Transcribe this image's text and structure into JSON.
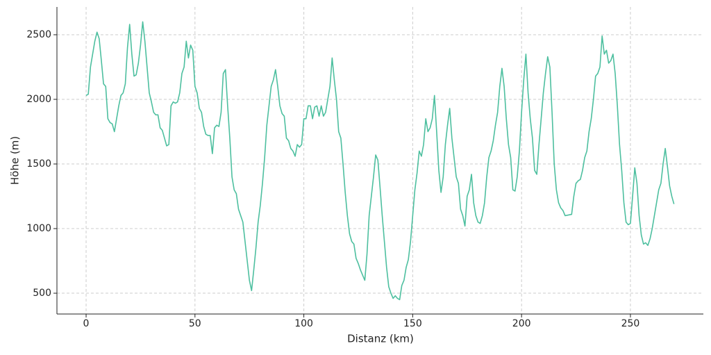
{
  "chart_data": {
    "type": "line",
    "xlabel": "Distanz (km)",
    "ylabel": "Höhe (m)",
    "x": [
      0,
      1,
      2,
      3,
      4,
      5,
      6,
      7,
      8,
      9,
      10,
      11,
      12,
      13,
      14,
      15,
      16,
      17,
      18,
      19,
      20,
      21,
      22,
      23,
      24,
      25,
      26,
      27,
      28,
      29,
      30,
      31,
      32,
      33,
      34,
      35,
      36,
      37,
      38,
      39,
      40,
      41,
      42,
      43,
      44,
      45,
      46,
      47,
      48,
      49,
      50,
      51,
      52,
      53,
      54,
      55,
      56,
      57,
      58,
      59,
      60,
      61,
      62,
      63,
      64,
      65,
      66,
      67,
      68,
      69,
      70,
      71,
      72,
      73,
      74,
      75,
      76,
      77,
      78,
      79,
      80,
      81,
      82,
      83,
      84,
      85,
      86,
      87,
      88,
      89,
      90,
      91,
      92,
      93,
      94,
      95,
      96,
      97,
      98,
      99,
      100,
      101,
      102,
      103,
      104,
      105,
      106,
      107,
      108,
      109,
      110,
      111,
      112,
      113,
      114,
      115,
      116,
      117,
      118,
      119,
      120,
      121,
      122,
      123,
      124,
      125,
      126,
      127,
      128,
      129,
      130,
      131,
      132,
      133,
      134,
      135,
      136,
      137,
      138,
      139,
      140,
      141,
      142,
      143,
      144,
      145,
      146,
      147,
      148,
      149,
      150,
      151,
      152,
      153,
      154,
      155,
      156,
      157,
      158,
      159,
      160,
      161,
      162,
      163,
      164,
      165,
      166,
      167,
      168,
      169,
      170,
      171,
      172,
      173,
      174,
      175,
      176,
      177,
      178,
      179,
      180,
      181,
      182,
      183,
      184,
      185,
      186,
      187,
      188,
      189,
      190,
      191,
      192,
      193,
      194,
      195,
      196,
      197,
      198,
      199,
      200,
      201,
      202,
      203,
      204,
      205,
      206,
      207,
      208,
      209,
      210,
      211,
      212,
      213,
      214,
      215,
      216,
      217,
      218,
      219,
      220,
      223,
      224,
      225,
      226,
      227,
      228,
      229,
      230,
      231,
      232,
      233,
      234,
      235,
      236,
      237,
      238,
      239,
      240,
      241,
      242,
      243,
      244,
      245,
      246,
      247,
      248,
      249,
      250,
      251,
      252,
      253,
      254,
      255,
      256,
      257,
      258,
      259,
      260,
      261,
      262,
      263,
      264,
      265,
      266,
      267,
      268,
      269,
      270
    ],
    "series": [
      {
        "color": "#4dbf9f",
        "values": [
          2030,
          2040,
          2250,
          2350,
          2450,
          2520,
          2470,
          2300,
          2120,
          2100,
          1850,
          1820,
          1810,
          1750,
          1850,
          1950,
          2030,
          2050,
          2120,
          2400,
          2580,
          2350,
          2180,
          2190,
          2280,
          2420,
          2600,
          2450,
          2250,
          2050,
          1980,
          1900,
          1880,
          1880,
          1780,
          1760,
          1700,
          1640,
          1650,
          1950,
          1980,
          1970,
          1980,
          2050,
          2200,
          2250,
          2450,
          2320,
          2420,
          2380,
          2100,
          2050,
          1930,
          1900,
          1790,
          1730,
          1720,
          1720,
          1580,
          1780,
          1800,
          1790,
          1900,
          2200,
          2230,
          1950,
          1700,
          1400,
          1300,
          1270,
          1150,
          1100,
          1050,
          900,
          750,
          600,
          520,
          680,
          850,
          1050,
          1180,
          1350,
          1550,
          1800,
          1950,
          2100,
          2150,
          2230,
          2100,
          1950,
          1890,
          1870,
          1700,
          1680,
          1620,
          1600,
          1560,
          1650,
          1630,
          1650,
          1850,
          1850,
          1950,
          1950,
          1850,
          1940,
          1950,
          1870,
          1950,
          1870,
          1900,
          2000,
          2100,
          2320,
          2150,
          2000,
          1750,
          1700,
          1500,
          1280,
          1100,
          960,
          900,
          880,
          770,
          730,
          680,
          640,
          600,
          800,
          1100,
          1250,
          1400,
          1570,
          1530,
          1320,
          1100,
          900,
          700,
          550,
          500,
          460,
          480,
          460,
          450,
          560,
          600,
          700,
          760,
          900,
          1100,
          1300,
          1430,
          1600,
          1560,
          1650,
          1850,
          1750,
          1780,
          1850,
          2030,
          1750,
          1450,
          1280,
          1400,
          1650,
          1800,
          1930,
          1700,
          1550,
          1400,
          1350,
          1150,
          1100,
          1020,
          1250,
          1300,
          1420,
          1200,
          1100,
          1050,
          1040,
          1100,
          1200,
          1400,
          1550,
          1600,
          1680,
          1800,
          1900,
          2100,
          2240,
          2100,
          1850,
          1650,
          1550,
          1300,
          1290,
          1400,
          1600,
          1900,
          2150,
          2350,
          2050,
          1850,
          1700,
          1450,
          1420,
          1650,
          1850,
          2050,
          2200,
          2330,
          2250,
          1900,
          1500,
          1300,
          1200,
          1160,
          1140,
          1100,
          1110,
          1250,
          1350,
          1370,
          1380,
          1450,
          1550,
          1600,
          1750,
          1850,
          2000,
          2180,
          2200,
          2250,
          2490,
          2350,
          2380,
          2280,
          2300,
          2350,
          2200,
          1950,
          1650,
          1450,
          1200,
          1050,
          1030,
          1040,
          1250,
          1470,
          1350,
          1100,
          950,
          880,
          890,
          870,
          920,
          1000,
          1100,
          1200,
          1300,
          1350,
          1500,
          1620,
          1480,
          1330,
          1250,
          1190
        ]
      }
    ],
    "xlim": [
      -13.4,
      283.5
    ],
    "ylim": [
      339,
      2715
    ],
    "xticks": [
      0,
      50,
      100,
      150,
      200,
      250
    ],
    "yticks": [
      500,
      1000,
      1500,
      2000,
      2500
    ],
    "grid": true
  }
}
